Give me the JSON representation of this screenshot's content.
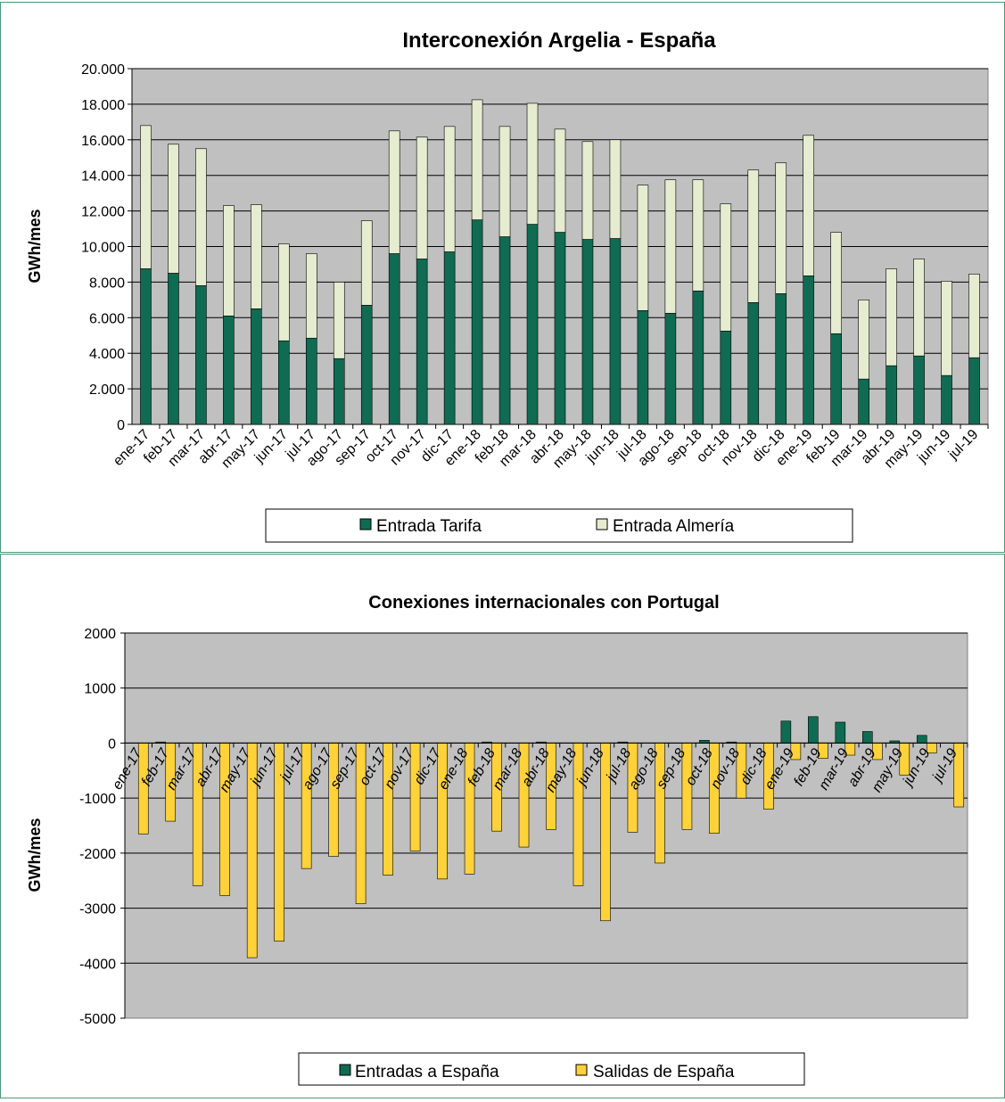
{
  "colors": {
    "plot_bg": "#c0c0c0",
    "tarifa": "#0f6b52",
    "almeria": "#e5ecd0",
    "entradas": "#0f6b52",
    "salidas": "#ffd23a",
    "border": "#4a9a7a"
  },
  "chart_data": [
    {
      "type": "bar",
      "stacked": true,
      "title": "Interconexión Argelia - España",
      "xlabel": "",
      "ylabel": "GWh/mes",
      "ylim": [
        0,
        20000
      ],
      "yticks": [
        "0",
        "2.000",
        "4.000",
        "6.000",
        "8.000",
        "10.000",
        "12.000",
        "14.000",
        "16.000",
        "18.000",
        "20.000"
      ],
      "grid": true,
      "legend_position": "bottom",
      "categories": [
        "ene-17",
        "feb-17",
        "mar-17",
        "abr-17",
        "may-17",
        "jun-17",
        "jul-17",
        "ago-17",
        "sep-17",
        "oct-17",
        "nov-17",
        "dic-17",
        "ene-18",
        "feb-18",
        "mar-18",
        "abr-18",
        "may-18",
        "jun-18",
        "jul-18",
        "ago-18",
        "sep-18",
        "oct-18",
        "nov-18",
        "dic-18",
        "ene-19",
        "feb-19",
        "mar-19",
        "abr-19",
        "may-19",
        "jun-19",
        "jul-19"
      ],
      "series": [
        {
          "name": "Entrada Tarifa",
          "values": [
            8750,
            8500,
            7800,
            6100,
            6500,
            4700,
            4850,
            3700,
            6700,
            9600,
            9300,
            9700,
            11500,
            10550,
            11250,
            10800,
            10400,
            10450,
            6400,
            6250,
            7500,
            5250,
            6850,
            7350,
            8350,
            5100,
            2550,
            3300,
            3850,
            2750,
            3750
          ]
        },
        {
          "name": "Entrada Almería",
          "values": [
            8050,
            7250,
            7700,
            6200,
            5850,
            5450,
            4750,
            4300,
            4750,
            6900,
            6850,
            7050,
            6750,
            6200,
            6800,
            5800,
            5500,
            5550,
            7050,
            7500,
            6250,
            7150,
            7450,
            7350,
            7900,
            5700,
            4450,
            5450,
            5450,
            5300,
            4700
          ]
        }
      ]
    },
    {
      "type": "bar",
      "stacked": false,
      "title": "Conexiones internacionales con Portugal",
      "xlabel": "",
      "ylabel": "GWh/mes",
      "ylim": [
        -5000,
        2000
      ],
      "yticks": [
        "-5000",
        "-4000",
        "-3000",
        "-2000",
        "-1000",
        "0",
        "1000",
        "2000"
      ],
      "grid": true,
      "legend_position": "bottom",
      "categories": [
        "ene-17",
        "feb-17",
        "mar-17",
        "abr-17",
        "may-17",
        "jun-17",
        "jul-17",
        "ago-17",
        "sep-17",
        "oct-17",
        "nov-17",
        "dic-17",
        "ene-18",
        "feb-18",
        "mar-18",
        "abr-18",
        "may-18",
        "jun-18",
        "jul-18",
        "ago-18",
        "sep-18",
        "oct-18",
        "nov-18",
        "dic-18",
        "ene-19",
        "feb-19",
        "mar-19",
        "abr-19",
        "may-19",
        "jun-19",
        "jul-19"
      ],
      "series": [
        {
          "name": "Entradas a España",
          "values": [
            0,
            20,
            0,
            0,
            0,
            0,
            0,
            0,
            0,
            0,
            0,
            0,
            0,
            20,
            0,
            20,
            0,
            0,
            20,
            0,
            0,
            50,
            20,
            0,
            400,
            480,
            380,
            210,
            40,
            140,
            0
          ]
        },
        {
          "name": "Salidas de España",
          "values": [
            -1650,
            -1420,
            -2590,
            -2770,
            -3900,
            -3600,
            -2280,
            -2060,
            -2920,
            -2400,
            -1960,
            -2470,
            -2380,
            -1600,
            -1890,
            -1570,
            -2590,
            -3230,
            -1620,
            -2180,
            -1570,
            -1640,
            -1000,
            -1200,
            -300,
            -280,
            -220,
            -300,
            -580,
            -180,
            -1160
          ]
        }
      ]
    }
  ]
}
